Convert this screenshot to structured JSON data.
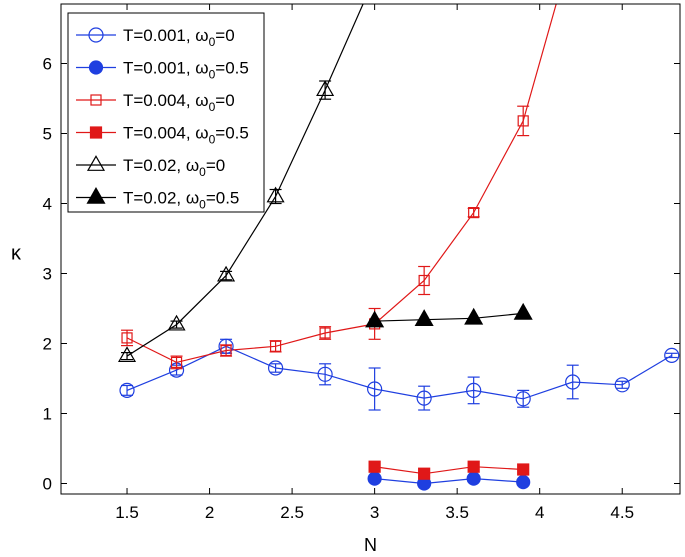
{
  "chart_data": {
    "type": "line",
    "title": "",
    "xlabel": "N",
    "ylabel": "κ",
    "xlim": [
      1.1,
      4.85
    ],
    "ylim": [
      -0.15,
      6.85
    ],
    "xticks": [
      1.5,
      2,
      2.5,
      3,
      3.5,
      4,
      4.5
    ],
    "xtick_labels": [
      "1.5",
      "2",
      "2.5",
      "3",
      "3.5",
      "4",
      "4.5"
    ],
    "yticks": [
      0,
      1,
      2,
      3,
      4,
      5,
      6
    ],
    "ytick_labels": [
      "0",
      "1",
      "2",
      "3",
      "4",
      "5",
      "6"
    ],
    "legend_position": "top-left",
    "series": [
      {
        "name": "T=0.001, ω0=0",
        "label_main": "T=0.001, ω",
        "label_sub": "0",
        "label_tail": "=0",
        "color": "#1f3fe0",
        "marker": "circle",
        "filled": false,
        "x": [
          1.5,
          1.8,
          2.1,
          2.4,
          2.7,
          3.0,
          3.3,
          3.6,
          3.9,
          4.2,
          4.5,
          4.8
        ],
        "y": [
          1.33,
          1.62,
          1.96,
          1.65,
          1.56,
          1.35,
          1.22,
          1.33,
          1.21,
          1.45,
          1.41,
          1.83
        ],
        "err": [
          0.07,
          0.07,
          0.1,
          0.06,
          0.15,
          0.3,
          0.17,
          0.19,
          0.12,
          0.24,
          0.05,
          0.03
        ]
      },
      {
        "name": "T=0.001, ω0=0.5",
        "label_main": "T=0.001, ω",
        "label_sub": "0",
        "label_tail": "=0.5",
        "color": "#1f3fe0",
        "marker": "circle",
        "filled": true,
        "x": [
          3.0,
          3.3,
          3.6,
          3.9
        ],
        "y": [
          0.07,
          0.0,
          0.07,
          0.02
        ],
        "err": [
          0,
          0,
          0,
          0
        ]
      },
      {
        "name": "T=0.004, ω0=0",
        "label_main": "T=0.004, ω",
        "label_sub": "0",
        "label_tail": "=0",
        "color": "#e01818",
        "marker": "square",
        "filled": false,
        "x": [
          1.5,
          1.8,
          2.1,
          2.4,
          2.7,
          3.0,
          3.3,
          3.6,
          3.9,
          4.1
        ],
        "y": [
          2.08,
          1.73,
          1.9,
          1.96,
          2.15,
          2.28,
          2.9,
          3.87,
          5.18,
          6.85
        ],
        "err": [
          0.11,
          0.09,
          0.08,
          0.08,
          0.09,
          0.22,
          0.2,
          0.06,
          0.21,
          0
        ],
        "marker_count": 9
      },
      {
        "name": "T=0.004, ω0=0.5",
        "label_main": "T=0.004, ω",
        "label_sub": "0",
        "label_tail": "=0.5",
        "color": "#e01818",
        "marker": "square",
        "filled": true,
        "x": [
          3.0,
          3.3,
          3.6,
          3.9
        ],
        "y": [
          0.24,
          0.14,
          0.24,
          0.2
        ],
        "err": [
          0,
          0,
          0,
          0
        ]
      },
      {
        "name": "T=0.02, ω0=0",
        "label_main": "T=0.02, ω",
        "label_sub": "0",
        "label_tail": "=0",
        "color": "#000000",
        "marker": "triangle",
        "filled": false,
        "x": [
          1.5,
          1.8,
          2.1,
          2.4,
          2.7,
          2.93
        ],
        "y": [
          1.82,
          2.27,
          2.97,
          4.1,
          5.62,
          6.85
        ],
        "err": [
          0.05,
          0.05,
          0.06,
          0.1,
          0.13,
          0
        ],
        "marker_count": 5
      },
      {
        "name": "T=0.02, ω0=0.5",
        "label_main": "T=0.02, ω",
        "label_sub": "0",
        "label_tail": "=0.5",
        "color": "#000000",
        "marker": "triangle",
        "filled": true,
        "x": [
          3.0,
          3.3,
          3.6,
          3.9
        ],
        "y": [
          2.32,
          2.34,
          2.36,
          2.43
        ],
        "err": [
          0,
          0,
          0,
          0
        ]
      }
    ]
  }
}
